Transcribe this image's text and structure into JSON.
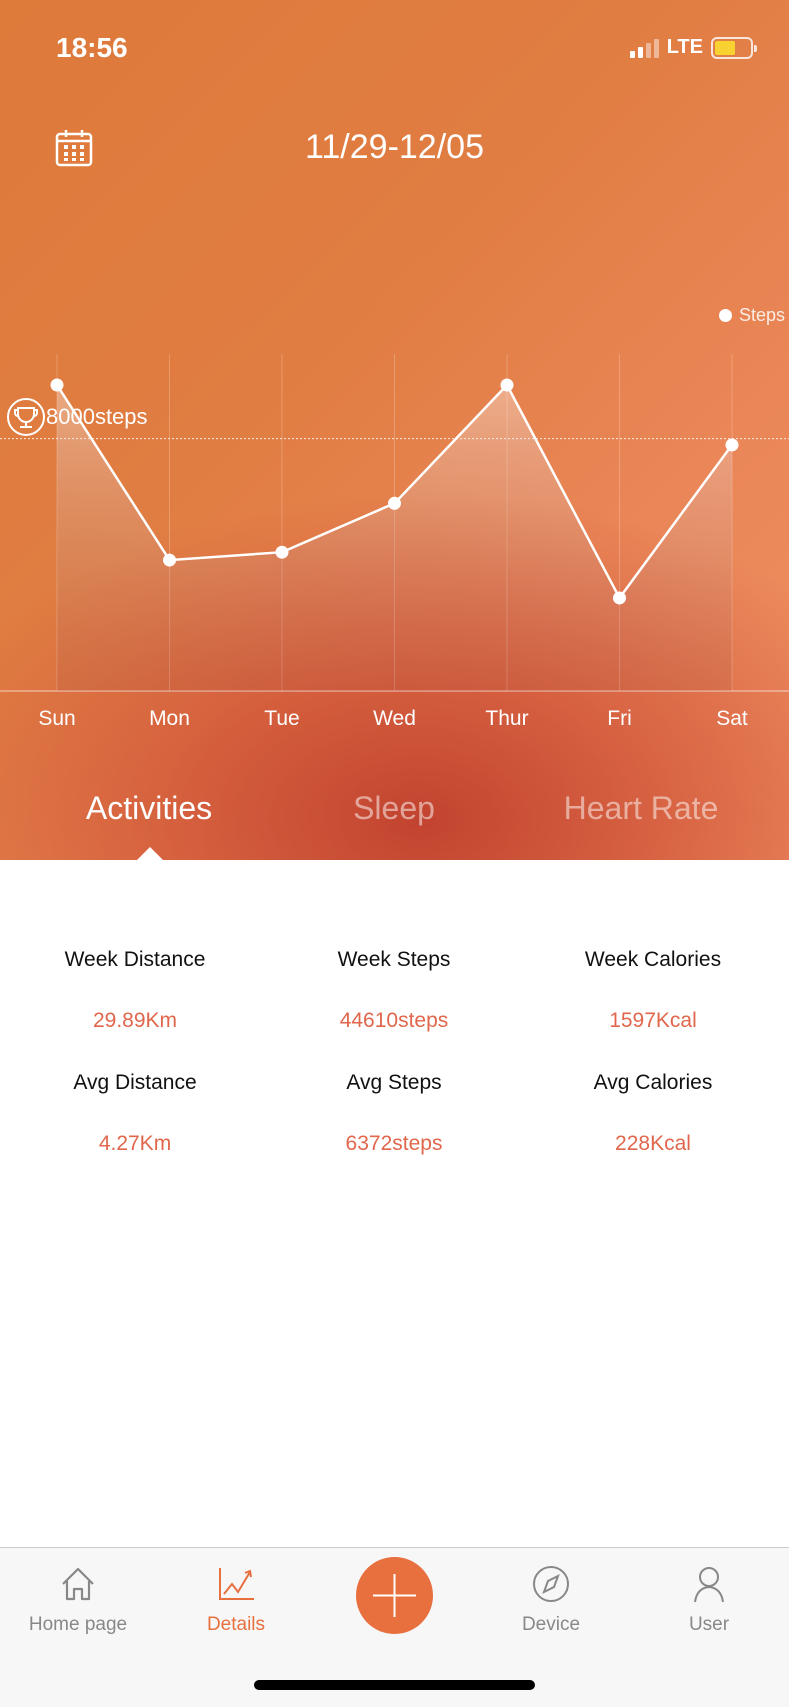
{
  "status_bar": {
    "time": "18:56",
    "network": "LTE",
    "battery_level": 0.6
  },
  "header": {
    "date_range": "11/29-12/05",
    "calendar_icon": "calendar-icon"
  },
  "chart_data": {
    "type": "area",
    "categories": [
      "Sun",
      "Mon",
      "Tue",
      "Wed",
      "Thur",
      "Fri",
      "Sat"
    ],
    "series": [
      {
        "name": "Steps",
        "values": [
          9700,
          4150,
          4400,
          5950,
          9700,
          2950,
          7800
        ]
      }
    ],
    "goal": {
      "value": 8000,
      "label": "8000steps"
    },
    "ylim": [
      0,
      11000
    ],
    "legend": "top-right",
    "grid": "vertical"
  },
  "tabs": [
    {
      "label": "Activities",
      "active": true
    },
    {
      "label": "Sleep",
      "active": false
    },
    {
      "label": "Heart Rate",
      "active": false
    }
  ],
  "stats": [
    {
      "label": "Week Distance",
      "value": "29.89Km"
    },
    {
      "label": "Week Steps",
      "value": "44610steps"
    },
    {
      "label": "Week Calories",
      "value": "1597Kcal"
    },
    {
      "label": "Avg Distance",
      "value": "4.27Km"
    },
    {
      "label": "Avg Steps",
      "value": "6372steps"
    },
    {
      "label": "Avg Calories",
      "value": "228Kcal"
    }
  ],
  "nav": {
    "home": "Home page",
    "details": "Details",
    "device": "Device",
    "user": "User",
    "accent": "#e8703f"
  }
}
